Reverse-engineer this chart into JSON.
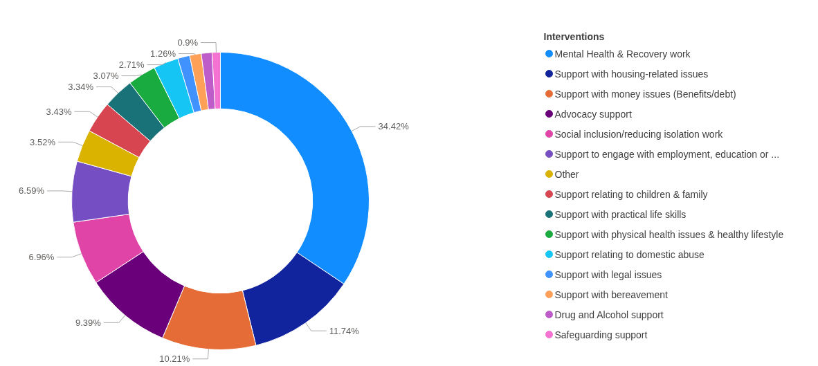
{
  "chart_data": {
    "type": "donut",
    "legend_title": "Interventions",
    "legend": "right",
    "categories": [
      "Mental Health & Recovery work",
      "Support with housing-related issues",
      "Support with money issues (Benefits/debt)",
      "Advocacy support",
      "Social inclusion/reducing isolation work",
      "Support to engage with employment, education or ...",
      "Other",
      "Support relating to children & family",
      "Support with practical life skills",
      "Support with physical health issues & healthy lifestyle",
      "Support relating to domestic abuse",
      "Support with legal issues",
      "Support with bereavement",
      "Drug and Alcohol support",
      "Safeguarding support"
    ],
    "values": [
      34.42,
      11.74,
      10.21,
      9.39,
      6.96,
      6.59,
      3.52,
      3.43,
      3.34,
      3.07,
      2.71,
      1.3,
      1.26,
      1.16,
      0.9
    ],
    "value_labels": [
      "34.42%",
      "11.74%",
      "10.21%",
      "9.39%",
      "6.96%",
      "6.59%",
      "3.52%",
      "3.43%",
      "3.34%",
      "3.07%",
      "2.71%",
      null,
      "1.26%",
      null,
      "0.9%"
    ],
    "colors": [
      "#118dff",
      "#12239e",
      "#e66c37",
      "#6b007b",
      "#e044a7",
      "#744ec2",
      "#d9b300",
      "#d64550",
      "#197278",
      "#1aab40",
      "#15c6f4",
      "#4092ff",
      "#ffa058",
      "#be5dc9",
      "#f472d0"
    ]
  }
}
